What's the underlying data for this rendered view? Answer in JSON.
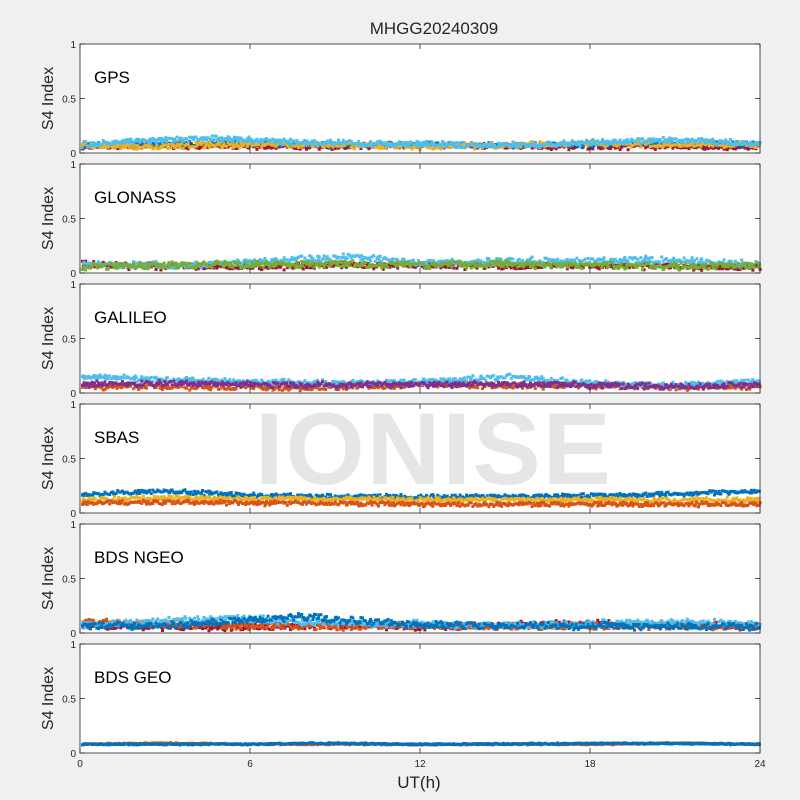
{
  "figure": {
    "title": "MHGG20240309",
    "watermark": "IONISE",
    "xlabel": "UT(h)"
  },
  "chart_data": {
    "type": "scatter",
    "title": "MHGG20240309",
    "xlabel": "UT(h)",
    "ylabel": "S4 Index",
    "xlim": [
      0,
      24
    ],
    "ylim": [
      0,
      1
    ],
    "x_ticks": [
      0,
      6,
      12,
      18,
      24
    ],
    "y_ticks": [
      0,
      0.5,
      1
    ],
    "grid": false,
    "series_colors": [
      "#0072bd",
      "#d95319",
      "#edb120",
      "#7e2f8e",
      "#77ac30",
      "#4dbeee",
      "#a2142f"
    ],
    "panels": [
      {
        "name": "GPS",
        "ylabel": "S4 Index",
        "typical_s4": 0.07,
        "spread": 0.025,
        "series": [
          {
            "color": "#a2142f",
            "x": [
              0,
              3,
              6,
              9,
              12,
              15,
              18,
              21,
              24
            ],
            "y": [
              0.06,
              0.07,
              0.06,
              0.06,
              0.07,
              0.06,
              0.06,
              0.06,
              0.05
            ]
          },
          {
            "color": "#0072bd",
            "x": [
              0,
              3,
              6,
              9,
              12,
              15,
              18,
              21,
              24
            ],
            "y": [
              0.07,
              0.08,
              0.09,
              0.07,
              0.08,
              0.07,
              0.08,
              0.09,
              0.08
            ]
          },
          {
            "color": "#edb120",
            "x": [
              0,
              3,
              6,
              9,
              12,
              15,
              18,
              21,
              24
            ],
            "y": [
              0.07,
              0.06,
              0.08,
              0.07,
              0.06,
              0.07,
              0.09,
              0.08,
              0.07
            ]
          },
          {
            "color": "#4dbeee",
            "x": [
              0,
              4.5,
              7,
              12,
              16,
              20.5,
              24
            ],
            "y": [
              0.08,
              0.14,
              0.1,
              0.08,
              0.07,
              0.12,
              0.08
            ]
          }
        ]
      },
      {
        "name": "GLONASS",
        "ylabel": "S4 Index",
        "typical_s4": 0.07,
        "spread": 0.03,
        "series": [
          {
            "color": "#a2142f",
            "x": [
              0,
              3,
              6,
              9,
              12,
              15,
              18,
              21,
              24
            ],
            "y": [
              0.08,
              0.06,
              0.06,
              0.07,
              0.07,
              0.06,
              0.07,
              0.06,
              0.05
            ]
          },
          {
            "color": "#4dbeee",
            "x": [
              0,
              4,
              9.5,
              12,
              15.5,
              21,
              24
            ],
            "y": [
              0.07,
              0.07,
              0.15,
              0.09,
              0.11,
              0.12,
              0.07
            ]
          },
          {
            "color": "#77ac30",
            "x": [
              0,
              3,
              6,
              9,
              12,
              15,
              18,
              21,
              24
            ],
            "y": [
              0.06,
              0.07,
              0.08,
              0.08,
              0.07,
              0.08,
              0.07,
              0.06,
              0.07
            ]
          }
        ]
      },
      {
        "name": "GALILEO",
        "ylabel": "S4 Index",
        "typical_s4": 0.08,
        "spread": 0.025,
        "series": [
          {
            "color": "#d95319",
            "x": [
              0,
              3,
              6,
              9,
              12,
              15,
              18,
              21,
              24
            ],
            "y": [
              0.06,
              0.06,
              0.05,
              0.05,
              0.08,
              0.06,
              0.07,
              0.05,
              0.06
            ]
          },
          {
            "color": "#4dbeee",
            "x": [
              0,
              3,
              6,
              9,
              12,
              15,
              18,
              21,
              24
            ],
            "y": [
              0.15,
              0.12,
              0.1,
              0.09,
              0.1,
              0.15,
              0.09,
              0.07,
              0.11
            ]
          },
          {
            "color": "#7e2f8e",
            "x": [
              0,
              3,
              6,
              9,
              12,
              15,
              18,
              21,
              24
            ],
            "y": [
              0.08,
              0.09,
              0.08,
              0.07,
              0.08,
              0.08,
              0.07,
              0.06,
              0.07
            ]
          }
        ]
      },
      {
        "name": "SBAS",
        "ylabel": "S4 Index",
        "typical_s4": 0.14,
        "spread": 0.02,
        "series": [
          {
            "color": "#0072bd",
            "x": [
              0,
              3,
              6,
              9,
              12,
              15,
              18,
              21,
              24
            ],
            "y": [
              0.17,
              0.2,
              0.16,
              0.15,
              0.15,
              0.15,
              0.16,
              0.17,
              0.2
            ]
          },
          {
            "color": "#edb120",
            "x": [
              0,
              3,
              6,
              9,
              12,
              15,
              18,
              21,
              24
            ],
            "y": [
              0.12,
              0.14,
              0.13,
              0.13,
              0.12,
              0.12,
              0.12,
              0.12,
              0.12
            ]
          },
          {
            "color": "#d95319",
            "x": [
              0,
              3,
              6,
              9,
              12,
              15,
              18,
              21,
              24
            ],
            "y": [
              0.09,
              0.1,
              0.09,
              0.09,
              0.08,
              0.08,
              0.08,
              0.08,
              0.08
            ]
          }
        ]
      },
      {
        "name": "BDS NGEO",
        "ylabel": "S4 Index",
        "typical_s4": 0.07,
        "spread": 0.03,
        "series": [
          {
            "color": "#a2142f",
            "x": [
              0,
              3,
              6,
              9,
              12,
              15,
              18,
              21,
              24
            ],
            "y": [
              0.06,
              0.06,
              0.05,
              0.07,
              0.06,
              0.07,
              0.09,
              0.07,
              0.06
            ]
          },
          {
            "color": "#d95319",
            "x": [
              0,
              3,
              6,
              9,
              12,
              15,
              18,
              21,
              24
            ],
            "y": [
              0.1,
              0.08,
              0.06,
              0.06,
              0.07,
              0.06,
              0.06,
              0.07,
              0.06
            ]
          },
          {
            "color": "#4dbeee",
            "x": [
              0,
              5.5,
              8,
              12,
              16,
              21.5,
              24
            ],
            "y": [
              0.07,
              0.14,
              0.1,
              0.08,
              0.07,
              0.1,
              0.07
            ]
          },
          {
            "color": "#0072bd",
            "x": [
              0,
              3,
              7.8,
              12,
              15,
              18,
              24
            ],
            "y": [
              0.07,
              0.07,
              0.15,
              0.07,
              0.07,
              0.06,
              0.06
            ]
          }
        ]
      },
      {
        "name": "BDS GEO",
        "ylabel": "S4 Index",
        "typical_s4": 0.09,
        "spread": 0.006,
        "series": [
          {
            "color": "#d95319",
            "x": [
              0,
              3,
              6,
              9,
              12,
              15,
              18,
              21,
              24
            ],
            "y": [
              0.08,
              0.09,
              0.08,
              0.08,
              0.08,
              0.08,
              0.08,
              0.09,
              0.08
            ]
          },
          {
            "color": "#0072bd",
            "x": [
              0,
              6,
              8,
              12,
              20,
              24
            ],
            "y": [
              0.08,
              0.08,
              0.09,
              0.08,
              0.09,
              0.08
            ]
          }
        ]
      }
    ]
  }
}
